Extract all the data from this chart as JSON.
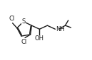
{
  "bg_color": "#ffffff",
  "line_color": "#1a1a1a",
  "line_width": 1.0,
  "font_size": 6.0,
  "fig_width": 1.29,
  "fig_height": 0.85,
  "dpi": 100,
  "xlim": [
    0.0,
    10.5
  ],
  "ylim": [
    3.2,
    7.8
  ]
}
